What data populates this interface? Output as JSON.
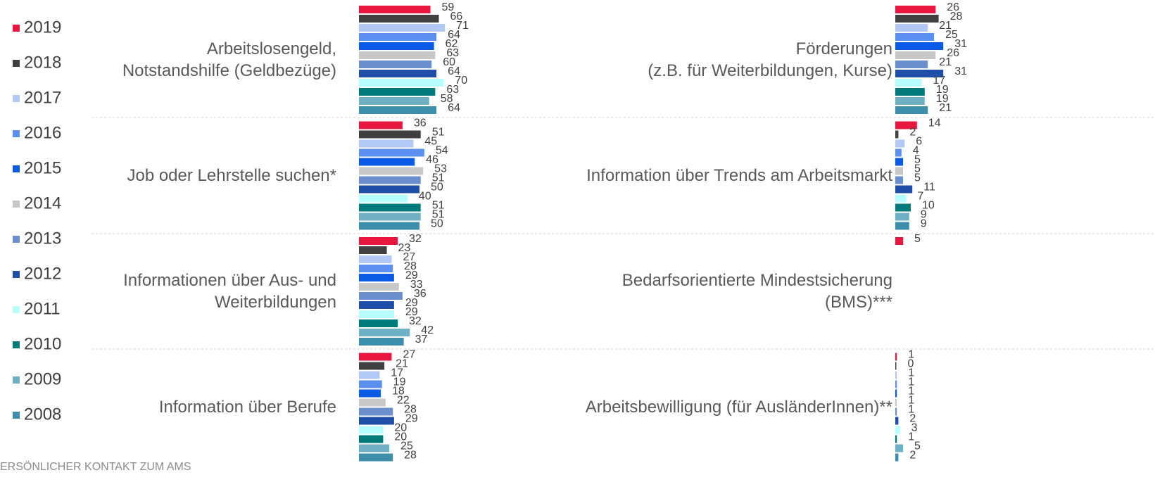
{
  "chart_data": [
    {
      "type": "bar",
      "orientation": "horizontal",
      "categories": [
        [
          "Arbeitslosengeld,",
          "Notstandshilfe (Geldbezüge)"
        ],
        [
          "Job oder Lehrstelle suchen*"
        ],
        [
          "Informationen über Aus- und",
          "Weiterbildungen"
        ],
        [
          "Information über Berufe"
        ]
      ],
      "xlim": [
        0,
        100
      ],
      "series": [
        {
          "name": "2019",
          "color": "#e8173f",
          "values": [
            59,
            36,
            32,
            27
          ]
        },
        {
          "name": "2018",
          "color": "#404040",
          "values": [
            66,
            51,
            23,
            21
          ]
        },
        {
          "name": "2017",
          "color": "#b3c9f5",
          "values": [
            71,
            45,
            27,
            17
          ]
        },
        {
          "name": "2016",
          "color": "#5b8ff0",
          "values": [
            64,
            54,
            28,
            19
          ]
        },
        {
          "name": "2015",
          "color": "#0a5ae6",
          "values": [
            62,
            46,
            29,
            18
          ]
        },
        {
          "name": "2014",
          "color": "#c8c8c8",
          "values": [
            63,
            53,
            33,
            22
          ]
        },
        {
          "name": "2013",
          "color": "#6b8fcc",
          "values": [
            60,
            51,
            36,
            28
          ]
        },
        {
          "name": "2012",
          "color": "#1f4fa8",
          "values": [
            64,
            50,
            29,
            29
          ]
        },
        {
          "name": "2011",
          "color": "#b8fdfd",
          "values": [
            70,
            40,
            29,
            20
          ]
        },
        {
          "name": "2010",
          "color": "#007a7a",
          "values": [
            63,
            51,
            32,
            20
          ]
        },
        {
          "name": "2009",
          "color": "#6fb0c4",
          "values": [
            58,
            51,
            42,
            25
          ]
        },
        {
          "name": "2008",
          "color": "#3d8eaa",
          "values": [
            64,
            50,
            37,
            28
          ]
        }
      ]
    },
    {
      "type": "bar",
      "orientation": "horizontal",
      "categories": [
        [
          "Förderungen",
          "(z.B. für Weiterbildungen, Kurse)"
        ],
        [
          "Information über Trends am Arbeitsmarkt"
        ],
        [
          "Bedarfsorientierte Mindestsicherung",
          "(BMS)***"
        ],
        [
          "Arbeitsbewilligung (für AusländerInnen)**"
        ]
      ],
      "xlim": [
        0,
        100
      ],
      "series": [
        {
          "values": [
            26,
            14,
            5,
            1
          ]
        },
        {
          "values": [
            28,
            2,
            null,
            0
          ]
        },
        {
          "values": [
            21,
            6,
            null,
            1
          ]
        },
        {
          "values": [
            25,
            4,
            null,
            1
          ]
        },
        {
          "values": [
            31,
            5,
            null,
            1
          ]
        },
        {
          "values": [
            26,
            5,
            null,
            1
          ]
        },
        {
          "values": [
            21,
            5,
            null,
            1
          ]
        },
        {
          "values": [
            31,
            11,
            null,
            2
          ]
        },
        {
          "values": [
            17,
            7,
            null,
            3
          ]
        },
        {
          "values": [
            19,
            10,
            null,
            1
          ]
        },
        {
          "values": [
            19,
            9,
            null,
            5
          ]
        },
        {
          "values": [
            21,
            9,
            null,
            2
          ]
        }
      ]
    }
  ],
  "footer": "ERSÖNLICHER KONTAKT ZUM AMS"
}
